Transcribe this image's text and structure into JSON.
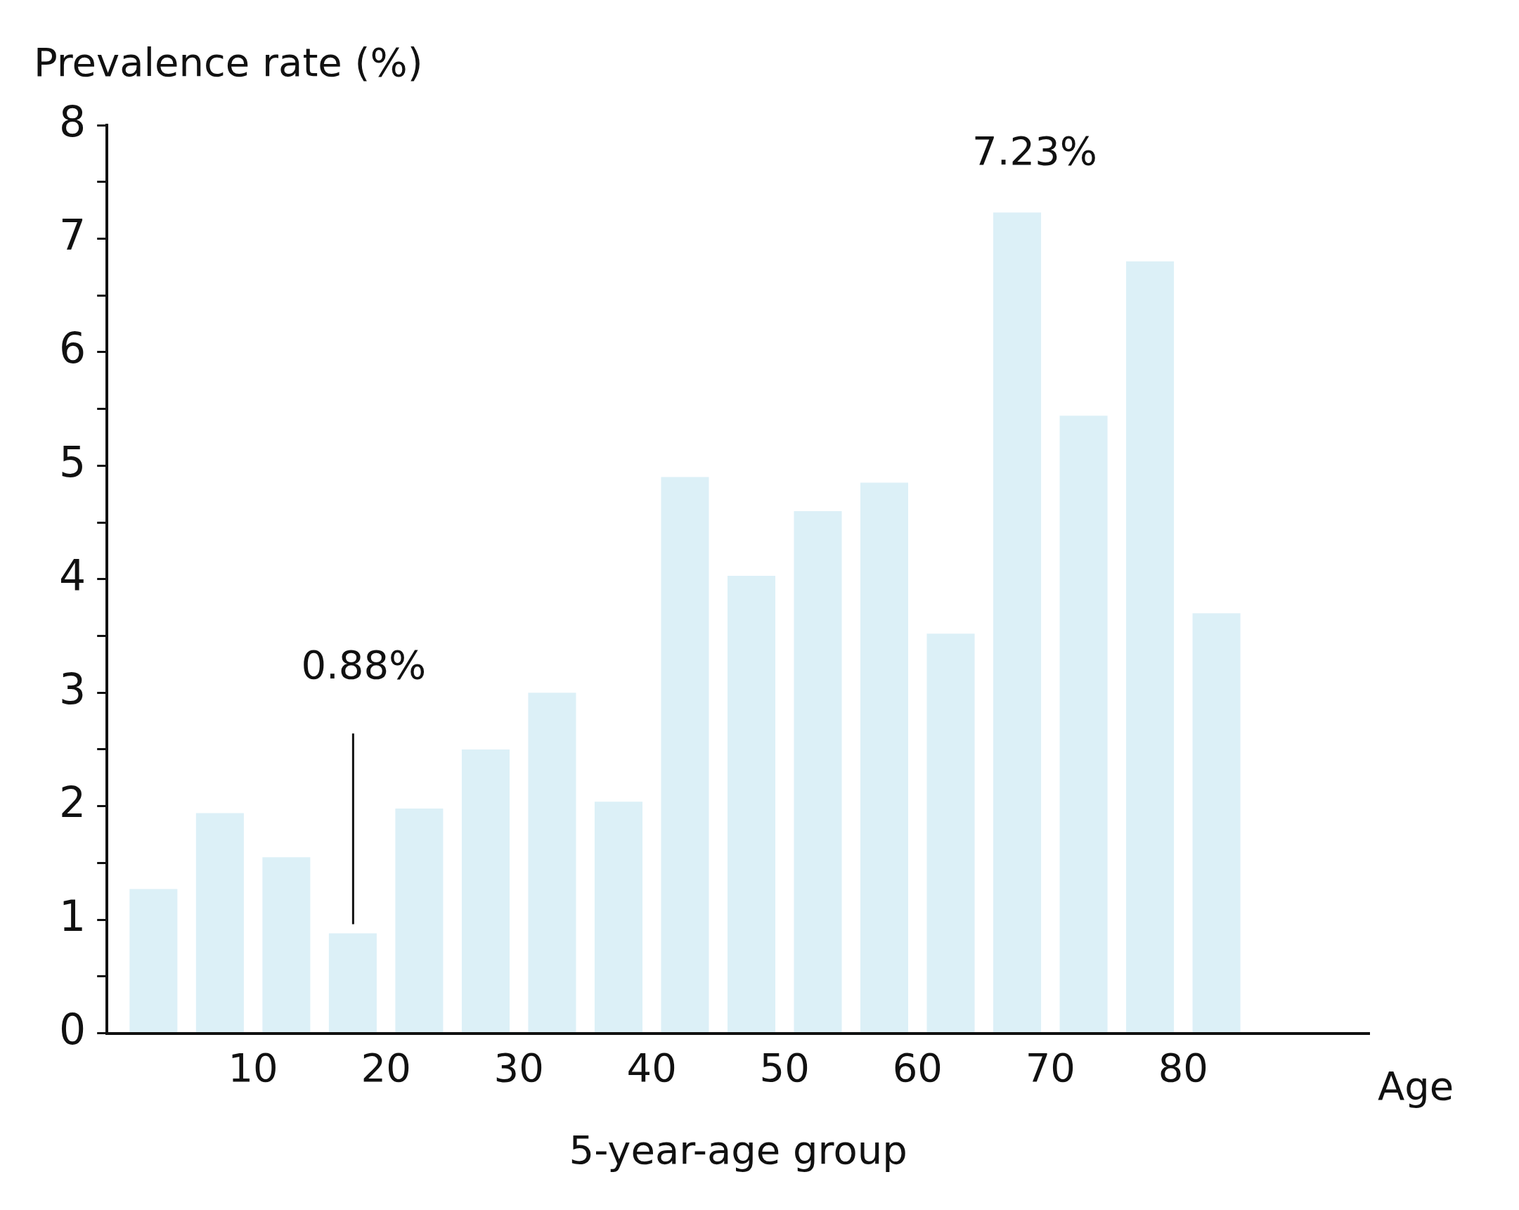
{
  "chart_data": {
    "type": "bar",
    "xlabel": "5-year-age group",
    "ylabel": "Prevalence rate (%)",
    "x": [
      2.5,
      7.5,
      12.5,
      17.5,
      22.5,
      27.5,
      32.5,
      37.5,
      42.5,
      47.5,
      52.5,
      57.5,
      62.5,
      67.5,
      72.5,
      77.5,
      82.5
    ],
    "values": [
      1.27,
      1.94,
      1.55,
      0.88,
      1.98,
      2.5,
      3.0,
      2.04,
      4.9,
      4.03,
      4.6,
      4.85,
      3.52,
      7.23,
      5.44,
      6.8,
      3.7
    ],
    "color": "#dcf0f7",
    "xlim": [
      -1,
      94
    ],
    "xticks": [
      10,
      20,
      30,
      40,
      50,
      60,
      70,
      80
    ],
    "ylim": [
      0,
      8
    ],
    "yticks": [
      0,
      {
        "value": 0.5,
        "label": null
      },
      1,
      {
        "value": 1.5,
        "label": null
      },
      2,
      {
        "value": 2.5,
        "label": null
      },
      3,
      {
        "value": 3.5,
        "label": null
      },
      4,
      {
        "value": 4.5,
        "label": null
      },
      5,
      {
        "value": 5.5,
        "label": null
      },
      6,
      {
        "value": 6.5,
        "label": null
      },
      7,
      {
        "value": 7.5,
        "label": null
      },
      8
    ],
    "annotations": [
      "0.88%",
      {
        "text": "7.23%",
        "x": 67.5,
        "y": 7.23
      },
      "Age"
    ],
    "grid": false,
    "legend": false
  }
}
